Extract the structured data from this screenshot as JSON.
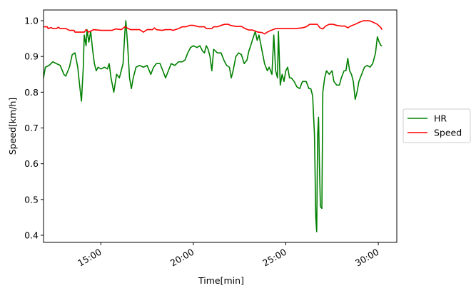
{
  "chart_data": {
    "type": "line",
    "title": "",
    "xlabel": "Time[min]",
    "ylabel": "Speed[km/h]",
    "x_unit": "minutes",
    "xlim": [
      11.9,
      31.0
    ],
    "ylim": [
      0.38,
      1.03
    ],
    "x_ticks": [
      {
        "value": 15,
        "label": "15:00"
      },
      {
        "value": 20,
        "label": "20:00"
      },
      {
        "value": 25,
        "label": "25:00"
      },
      {
        "value": 30,
        "label": "30:00"
      }
    ],
    "y_ticks": [
      {
        "value": 0.4,
        "label": "0.4"
      },
      {
        "value": 0.5,
        "label": "0.5"
      },
      {
        "value": 0.6,
        "label": "0.6"
      },
      {
        "value": 0.7,
        "label": "0.7"
      },
      {
        "value": 0.8,
        "label": "0.8"
      },
      {
        "value": 0.9,
        "label": "0.9"
      },
      {
        "value": 1.0,
        "label": "1.0"
      }
    ],
    "grid": false,
    "legend_position": "right-outside",
    "series": [
      {
        "name": "HR",
        "color": "#008000",
        "points": [
          [
            11.9,
            0.84
          ],
          [
            12.0,
            0.87
          ],
          [
            12.2,
            0.875
          ],
          [
            12.4,
            0.885
          ],
          [
            12.6,
            0.88
          ],
          [
            12.8,
            0.875
          ],
          [
            13.0,
            0.85
          ],
          [
            13.1,
            0.845
          ],
          [
            13.3,
            0.87
          ],
          [
            13.45,
            0.905
          ],
          [
            13.6,
            0.91
          ],
          [
            13.75,
            0.87
          ],
          [
            13.85,
            0.82
          ],
          [
            13.95,
            0.775
          ],
          [
            14.05,
            0.87
          ],
          [
            14.1,
            0.96
          ],
          [
            14.2,
            0.93
          ],
          [
            14.25,
            0.975
          ],
          [
            14.35,
            0.94
          ],
          [
            14.45,
            0.97
          ],
          [
            14.55,
            0.92
          ],
          [
            14.65,
            0.88
          ],
          [
            14.75,
            0.86
          ],
          [
            14.85,
            0.87
          ],
          [
            15.0,
            0.865
          ],
          [
            15.2,
            0.87
          ],
          [
            15.35,
            0.865
          ],
          [
            15.45,
            0.88
          ],
          [
            15.55,
            0.84
          ],
          [
            15.7,
            0.8
          ],
          [
            15.85,
            0.85
          ],
          [
            16.0,
            0.84
          ],
          [
            16.1,
            0.86
          ],
          [
            16.2,
            0.88
          ],
          [
            16.3,
            0.97
          ],
          [
            16.35,
            1.0
          ],
          [
            16.45,
            0.93
          ],
          [
            16.55,
            0.84
          ],
          [
            16.65,
            0.81
          ],
          [
            16.75,
            0.84
          ],
          [
            16.9,
            0.87
          ],
          [
            17.1,
            0.875
          ],
          [
            17.3,
            0.87
          ],
          [
            17.5,
            0.875
          ],
          [
            17.7,
            0.85
          ],
          [
            17.85,
            0.87
          ],
          [
            18.0,
            0.88
          ],
          [
            18.2,
            0.88
          ],
          [
            18.35,
            0.86
          ],
          [
            18.5,
            0.84
          ],
          [
            18.65,
            0.86
          ],
          [
            18.8,
            0.88
          ],
          [
            19.0,
            0.875
          ],
          [
            19.2,
            0.885
          ],
          [
            19.4,
            0.885
          ],
          [
            19.55,
            0.89
          ],
          [
            19.7,
            0.91
          ],
          [
            19.85,
            0.925
          ],
          [
            20.0,
            0.93
          ],
          [
            20.2,
            0.925
          ],
          [
            20.35,
            0.93
          ],
          [
            20.5,
            0.915
          ],
          [
            20.6,
            0.91
          ],
          [
            20.7,
            0.93
          ],
          [
            20.8,
            0.92
          ],
          [
            20.9,
            0.9
          ],
          [
            21.0,
            0.86
          ],
          [
            21.1,
            0.92
          ],
          [
            21.3,
            0.91
          ],
          [
            21.5,
            0.91
          ],
          [
            21.65,
            0.89
          ],
          [
            21.8,
            0.875
          ],
          [
            21.95,
            0.87
          ],
          [
            22.05,
            0.84
          ],
          [
            22.15,
            0.86
          ],
          [
            22.3,
            0.9
          ],
          [
            22.45,
            0.91
          ],
          [
            22.6,
            0.905
          ],
          [
            22.75,
            0.88
          ],
          [
            22.9,
            0.89
          ],
          [
            23.0,
            0.915
          ],
          [
            23.1,
            0.93
          ],
          [
            23.25,
            0.955
          ],
          [
            23.35,
            0.97
          ],
          [
            23.45,
            0.945
          ],
          [
            23.55,
            0.96
          ],
          [
            23.7,
            0.92
          ],
          [
            23.85,
            0.88
          ],
          [
            24.0,
            0.86
          ],
          [
            24.1,
            0.87
          ],
          [
            24.25,
            0.85
          ],
          [
            24.35,
            0.96
          ],
          [
            24.45,
            0.86
          ],
          [
            24.55,
            0.84
          ],
          [
            24.6,
            0.97
          ],
          [
            24.7,
            0.82
          ],
          [
            24.8,
            0.85
          ],
          [
            24.9,
            0.83
          ],
          [
            25.0,
            0.86
          ],
          [
            25.1,
            0.87
          ],
          [
            25.2,
            0.84
          ],
          [
            25.3,
            0.84
          ],
          [
            25.45,
            0.83
          ],
          [
            25.6,
            0.815
          ],
          [
            25.75,
            0.81
          ],
          [
            25.9,
            0.83
          ],
          [
            26.1,
            0.83
          ],
          [
            26.25,
            0.81
          ],
          [
            26.35,
            0.81
          ],
          [
            26.45,
            0.79
          ],
          [
            26.55,
            0.68
          ],
          [
            26.62,
            0.45
          ],
          [
            26.67,
            0.41
          ],
          [
            26.72,
            0.68
          ],
          [
            26.77,
            0.73
          ],
          [
            26.82,
            0.59
          ],
          [
            26.87,
            0.48
          ],
          [
            26.95,
            0.475
          ],
          [
            27.0,
            0.8
          ],
          [
            27.1,
            0.84
          ],
          [
            27.2,
            0.86
          ],
          [
            27.35,
            0.85
          ],
          [
            27.5,
            0.86
          ],
          [
            27.6,
            0.83
          ],
          [
            27.75,
            0.82
          ],
          [
            27.9,
            0.82
          ],
          [
            28.0,
            0.84
          ],
          [
            28.15,
            0.86
          ],
          [
            28.25,
            0.86
          ],
          [
            28.35,
            0.895
          ],
          [
            28.45,
            0.86
          ],
          [
            28.55,
            0.85
          ],
          [
            28.65,
            0.83
          ],
          [
            28.75,
            0.78
          ],
          [
            28.85,
            0.8
          ],
          [
            28.95,
            0.83
          ],
          [
            29.1,
            0.85
          ],
          [
            29.25,
            0.87
          ],
          [
            29.4,
            0.875
          ],
          [
            29.55,
            0.87
          ],
          [
            29.7,
            0.88
          ],
          [
            29.85,
            0.91
          ],
          [
            29.95,
            0.955
          ],
          [
            30.05,
            0.94
          ],
          [
            30.15,
            0.93
          ],
          [
            30.2,
            0.93
          ]
        ]
      },
      {
        "name": "Speed",
        "color": "#ff0000",
        "points": [
          [
            11.9,
            0.983
          ],
          [
            12.1,
            0.983
          ],
          [
            12.15,
            0.978
          ],
          [
            12.3,
            0.981
          ],
          [
            12.4,
            0.978
          ],
          [
            12.6,
            0.978
          ],
          [
            12.7,
            0.982
          ],
          [
            12.8,
            0.978
          ],
          [
            13.1,
            0.978
          ],
          [
            13.3,
            0.973
          ],
          [
            13.55,
            0.973
          ],
          [
            13.6,
            0.968
          ],
          [
            14.1,
            0.968
          ],
          [
            14.2,
            0.975
          ],
          [
            14.35,
            0.968
          ],
          [
            14.6,
            0.975
          ],
          [
            15.0,
            0.973
          ],
          [
            15.6,
            0.973
          ],
          [
            15.8,
            0.977
          ],
          [
            16.1,
            0.975
          ],
          [
            16.3,
            0.983
          ],
          [
            16.6,
            0.975
          ],
          [
            17.1,
            0.975
          ],
          [
            17.3,
            0.968
          ],
          [
            17.5,
            0.975
          ],
          [
            17.8,
            0.975
          ],
          [
            17.9,
            0.98
          ],
          [
            18.0,
            0.975
          ],
          [
            18.3,
            0.973
          ],
          [
            18.5,
            0.975
          ],
          [
            18.8,
            0.975
          ],
          [
            18.9,
            0.973
          ],
          [
            19.2,
            0.978
          ],
          [
            19.4,
            0.983
          ],
          [
            19.6,
            0.983
          ],
          [
            19.8,
            0.987
          ],
          [
            20.0,
            0.987
          ],
          [
            20.3,
            0.983
          ],
          [
            20.6,
            0.983
          ],
          [
            20.7,
            0.978
          ],
          [
            21.0,
            0.978
          ],
          [
            21.1,
            0.983
          ],
          [
            21.3,
            0.983
          ],
          [
            21.5,
            0.987
          ],
          [
            21.7,
            0.99
          ],
          [
            21.9,
            0.99
          ],
          [
            22.0,
            0.987
          ],
          [
            22.3,
            0.984
          ],
          [
            22.6,
            0.984
          ],
          [
            22.8,
            0.978
          ],
          [
            23.0,
            0.974
          ],
          [
            23.2,
            0.974
          ],
          [
            23.5,
            0.968
          ],
          [
            23.7,
            0.967
          ],
          [
            23.85,
            0.963
          ],
          [
            24.0,
            0.968
          ],
          [
            24.15,
            0.972
          ],
          [
            24.3,
            0.975
          ],
          [
            24.45,
            0.978
          ],
          [
            24.6,
            0.978
          ],
          [
            25.0,
            0.978
          ],
          [
            25.5,
            0.978
          ],
          [
            25.9,
            0.98
          ],
          [
            26.1,
            0.983
          ],
          [
            26.3,
            0.99
          ],
          [
            26.5,
            0.99
          ],
          [
            26.7,
            0.99
          ],
          [
            26.85,
            0.98
          ],
          [
            27.0,
            0.977
          ],
          [
            27.15,
            0.985
          ],
          [
            27.35,
            0.99
          ],
          [
            27.55,
            0.99
          ],
          [
            27.75,
            0.987
          ],
          [
            28.0,
            0.985
          ],
          [
            28.2,
            0.985
          ],
          [
            28.35,
            0.98
          ],
          [
            28.5,
            0.985
          ],
          [
            28.75,
            0.99
          ],
          [
            28.95,
            0.995
          ],
          [
            29.2,
            1.0
          ],
          [
            29.5,
            1.0
          ],
          [
            29.75,
            0.995
          ],
          [
            29.95,
            0.99
          ],
          [
            30.05,
            0.985
          ],
          [
            30.15,
            0.98
          ],
          [
            30.2,
            0.975
          ]
        ]
      }
    ]
  }
}
